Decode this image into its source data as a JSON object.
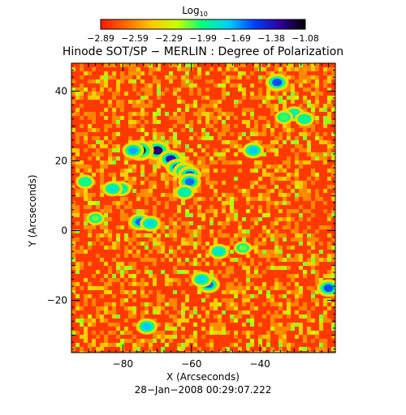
{
  "chart_data": {
    "type": "heatmap",
    "title": "Hinode SOT/SP − MERLIN : Degree of Polarization",
    "xlabel": "X (Arcseconds)",
    "ylabel": "Y (Arcseconds)",
    "timestamp": "28−Jan−2008 00:29:07.222",
    "xlim": [
      -95,
      -18
    ],
    "ylim": [
      -35,
      48
    ],
    "x_ticks": [
      -80,
      -60,
      -40
    ],
    "x_tick_labels": [
      "−80",
      "−60",
      "−40"
    ],
    "y_ticks": [
      -20,
      0,
      20,
      40
    ],
    "y_tick_labels": [
      "−20",
      "0",
      "20",
      "40"
    ],
    "colorbar": {
      "title": "Log",
      "title_subscript": "10",
      "range": [
        -2.89,
        -1.08
      ],
      "tick_labels": [
        "−2.89",
        "−2.59",
        "−2.29",
        "−1.99",
        "−1.69",
        "−1.38",
        "−1.08"
      ],
      "colormap": [
        "#ff1800",
        "#ff6a00",
        "#ffc800",
        "#c8ff00",
        "#00ff80",
        "#00d0ff",
        "#0040ff",
        "#3000a0",
        "#000000"
      ]
    },
    "background_level": -2.8,
    "features": [
      {
        "x": -70.0,
        "y": 23.0,
        "level": -1.25
      },
      {
        "x": -66.0,
        "y": 20.5,
        "level": -1.4
      },
      {
        "x": -64.0,
        "y": 18.0,
        "level": -1.5
      },
      {
        "x": -62.0,
        "y": 17.0,
        "level": -1.55
      },
      {
        "x": -60.5,
        "y": 16.0,
        "level": -1.55
      },
      {
        "x": -60.5,
        "y": 14.0,
        "level": -1.6
      },
      {
        "x": -62.0,
        "y": 11.0,
        "level": -1.9
      },
      {
        "x": -75.0,
        "y": 23.0,
        "level": -1.1
      },
      {
        "x": -77.0,
        "y": 23.0,
        "level": -1.7
      },
      {
        "x": -80.5,
        "y": 12.0,
        "level": -1.9
      },
      {
        "x": -83.0,
        "y": 12.0,
        "level": -1.85
      },
      {
        "x": -91.0,
        "y": 14.0,
        "level": -2.0
      },
      {
        "x": -75.0,
        "y": 2.5,
        "level": -1.6
      },
      {
        "x": -72.0,
        "y": 2.0,
        "level": -1.8
      },
      {
        "x": -55.0,
        "y": -15.5,
        "level": -1.6
      },
      {
        "x": -57.0,
        "y": -14.0,
        "level": -1.8
      },
      {
        "x": -52.0,
        "y": -6.0,
        "level": -1.85
      },
      {
        "x": -42.0,
        "y": 23.0,
        "level": -1.75
      },
      {
        "x": -35.0,
        "y": 42.5,
        "level": -1.55
      },
      {
        "x": -30.0,
        "y": 33.5,
        "level": -1.9
      },
      {
        "x": -33.0,
        "y": 32.5,
        "level": -2.05
      },
      {
        "x": -27.0,
        "y": 32.0,
        "level": -1.95
      },
      {
        "x": -20.0,
        "y": -16.5,
        "level": -1.55
      },
      {
        "x": -73.0,
        "y": -27.5,
        "level": -1.75
      },
      {
        "x": -88.0,
        "y": 3.5,
        "level": -2.1
      },
      {
        "x": -45.0,
        "y": -5.0,
        "level": -2.1
      }
    ]
  }
}
